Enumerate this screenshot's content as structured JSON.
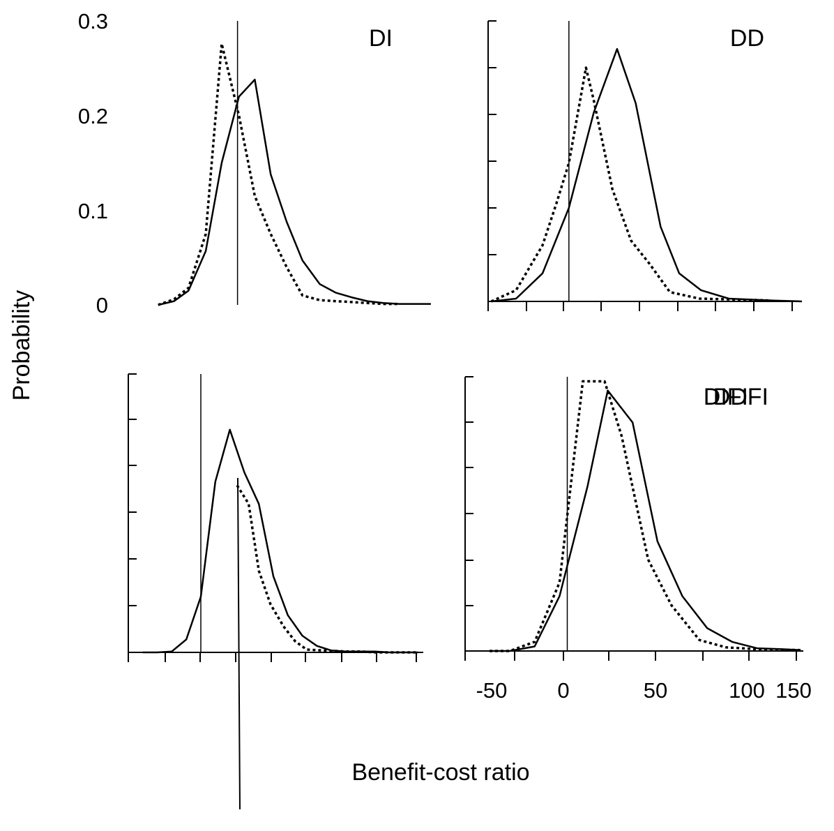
{
  "figure": {
    "ylabel": "Probability",
    "xlabel": "Benefit-cost ratio",
    "y_ticks": [
      "0",
      "0.1",
      "0.2",
      "0.3"
    ],
    "x_ticks": [
      "-50",
      "0",
      "50",
      "100",
      "150"
    ]
  },
  "chart_data": [
    {
      "type": "line",
      "panel": "DI",
      "title": "DI",
      "xlabel": "",
      "ylabel": "Probability",
      "ylim": [
        0,
        0.3
      ],
      "y_ticks": [
        "0",
        "0.1",
        "0.2",
        "0.3"
      ],
      "x_ticks": [],
      "xlim": [
        -52,
        135
      ],
      "zero_line": true,
      "series": [
        {
          "style": "solid",
          "x": [
            -55,
            -44,
            -34,
            -22,
            -11,
            1,
            12,
            23,
            34,
            45,
            57,
            68,
            79,
            90,
            101,
            112,
            123,
            134
          ],
          "values": [
            0,
            0.004,
            0.015,
            0.057,
            0.15,
            0.22,
            0.238,
            0.138,
            0.088,
            0.047,
            0.022,
            0.013,
            0.008,
            0.004,
            0.002,
            0.001,
            0.001,
            0.001
          ]
        },
        {
          "style": "dotted",
          "x": [
            -55,
            -44,
            -34,
            -22,
            -11,
            1,
            12,
            23,
            34,
            45,
            57,
            68,
            79,
            90,
            101,
            112
          ],
          "values": [
            0,
            0.006,
            0.018,
            0.075,
            0.276,
            0.2,
            0.115,
            0.075,
            0.04,
            0.01,
            0.005,
            0.004,
            0.003,
            0.002,
            0.001,
            0.001
          ]
        }
      ]
    },
    {
      "type": "line",
      "panel": "DD",
      "title": "DD",
      "xlabel": "",
      "ylabel": "",
      "ylim": [
        0,
        0.3
      ],
      "x_ticks": [],
      "xlim": [
        -52,
        150
      ],
      "zero_line": true,
      "series": [
        {
          "style": "solid",
          "x": [
            -50,
            -34,
            -17,
            0,
            16,
            31,
            43,
            59,
            71,
            85,
            103,
            116,
            132,
            150
          ],
          "values": [
            0,
            0.003,
            0.03,
            0.1,
            0.202,
            0.27,
            0.212,
            0.08,
            0.03,
            0.012,
            0.003,
            0.002,
            0.001,
            0
          ]
        },
        {
          "style": "dotted",
          "x": [
            -50,
            -34,
            -17,
            -8,
            0,
            11,
            16,
            28,
            40,
            52,
            65,
            84,
            108,
            130
          ],
          "values": [
            0,
            0.012,
            0.06,
            0.105,
            0.148,
            0.25,
            0.215,
            0.12,
            0.065,
            0.04,
            0.01,
            0.003,
            0.002,
            0.001
          ]
        }
      ]
    },
    {
      "type": "line",
      "panel": "DIFI",
      "title": "DIFI",
      "xlabel": "",
      "ylabel": "",
      "ylim": [
        0,
        0.3
      ],
      "x_ticks": [],
      "xlim": [
        -50,
        150
      ],
      "zero_line": true,
      "series": [
        {
          "style": "solid",
          "x": [
            -40,
            -30,
            -20,
            -10,
            0,
            10,
            20,
            30,
            40,
            50,
            60,
            70,
            80,
            90,
            100,
            110,
            120,
            130,
            140,
            150
          ],
          "values": [
            0,
            0,
            0.001,
            0.014,
            0.06,
            0.184,
            0.24,
            0.194,
            0.16,
            0.082,
            0.04,
            0.018,
            0.007,
            0.002,
            0.001,
            0.001,
            0.001,
            0,
            0,
            0
          ]
        },
        {
          "style": "dotted",
          "x": [
            25,
            33,
            40,
            48,
            57,
            65,
            73,
            85,
            100,
            110,
            120,
            140,
            150
          ],
          "values": [
            0.18,
            0.16,
            0.088,
            0.052,
            0.028,
            0.012,
            0.003,
            0.002,
            0.001,
            0.001,
            0,
            0,
            0
          ]
        }
      ],
      "callout_line": true
    },
    {
      "type": "line",
      "panel": "DDFI",
      "title": "DDFI",
      "xlabel": "Benefit-cost ratio",
      "ylabel": "",
      "ylim": [
        0,
        0.3
      ],
      "x_ticks": [
        "-50",
        "0",
        "50",
        "100",
        "150"
      ],
      "xlim": [
        -50,
        150
      ],
      "zero_line": true,
      "series": [
        {
          "style": "solid",
          "x": [
            -50,
            -37,
            -21,
            -5,
            13,
            26,
            42,
            58,
            74,
            90,
            106,
            122,
            138,
            150
          ],
          "values": [
            0,
            0,
            0.005,
            0.06,
            0.18,
            0.285,
            0.25,
            0.12,
            0.06,
            0.025,
            0.01,
            0.003,
            0.002,
            0.001
          ]
        },
        {
          "style": "dotted",
          "x": [
            -50,
            -37,
            -21,
            -5,
            10,
            24,
            35,
            52,
            67,
            85,
            102,
            122,
            150
          ],
          "values": [
            0,
            0,
            0.01,
            0.075,
            0.295,
            0.295,
            0.235,
            0.1,
            0.05,
            0.012,
            0.004,
            0.002,
            0.001
          ]
        }
      ]
    }
  ]
}
